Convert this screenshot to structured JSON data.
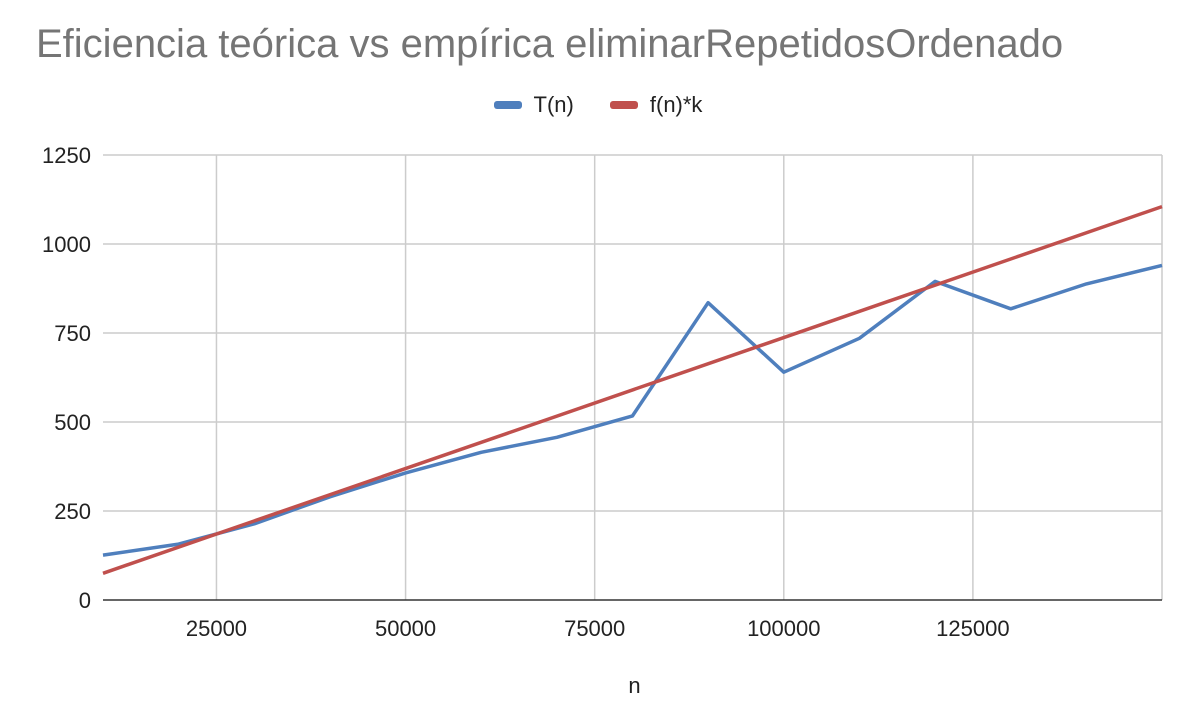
{
  "chart_data": {
    "type": "line",
    "title": "Eficiencia teórica vs empírica eliminarRepetidosOrdenado",
    "xlabel": "n",
    "ylabel": "",
    "xlim": [
      10000,
      150000
    ],
    "ylim": [
      0,
      1250
    ],
    "xticks": [
      "25000",
      "50000",
      "75000",
      "100000",
      "125000"
    ],
    "yticks": [
      "0",
      "250",
      "500",
      "750",
      "1000",
      "1250"
    ],
    "grid": true,
    "legend_position": "top",
    "series": [
      {
        "name": "T(n)",
        "color": "#4f7fbd",
        "x": [
          10000,
          20000,
          30000,
          40000,
          50000,
          60000,
          70000,
          80000,
          90000,
          100000,
          110000,
          120000,
          130000,
          140000,
          150000
        ],
        "values": [
          126,
          157,
          214,
          290,
          357,
          415,
          457,
          517,
          835,
          640,
          735,
          895,
          818,
          888,
          940
        ]
      },
      {
        "name": "f(n)*k",
        "color": "#c0504d",
        "x": [
          10000,
          150000
        ],
        "values": [
          75,
          1105
        ]
      }
    ]
  }
}
